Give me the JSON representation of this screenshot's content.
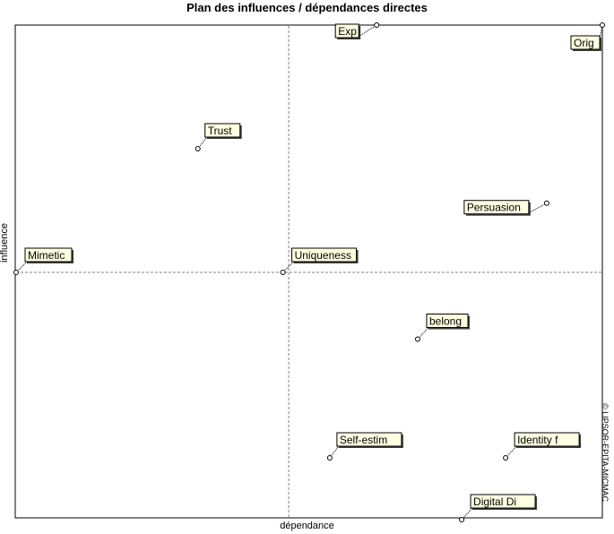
{
  "chart_data": {
    "type": "scatter",
    "title": "Plan des influences / dépendances directes",
    "xlabel": "dépendance",
    "ylabel": "influence",
    "watermark": "© LIPSOR-EPITA-MICMAC",
    "xlim": [
      0,
      100
    ],
    "ylim": [
      0,
      100
    ],
    "axis_cross": {
      "x": 46.5,
      "y": 50
    },
    "grid": false,
    "points": [
      {
        "name": "Exp",
        "x": 61.5,
        "y": 100
      },
      {
        "name": "Orig",
        "x": 100,
        "y": 100
      },
      {
        "name": "Trust",
        "x": 31,
        "y": 75
      },
      {
        "name": "Persuasion",
        "x": 90.5,
        "y": 64
      },
      {
        "name": "Mimetic",
        "x": 0,
        "y": 50
      },
      {
        "name": "Uniqueness",
        "x": 45.5,
        "y": 50
      },
      {
        "name": "belong",
        "x": 68.5,
        "y": 36.5
      },
      {
        "name": "Self-estim",
        "x": 53.5,
        "y": 12.5
      },
      {
        "name": "Identity f",
        "x": 83.5,
        "y": 12.5
      },
      {
        "name": "Digital Di",
        "x": 76,
        "y": 0
      }
    ]
  },
  "colors": {
    "label_bg": "#ffffe1",
    "label_border": "#000000",
    "frame": "#000000",
    "axis_dash": "#808080"
  }
}
